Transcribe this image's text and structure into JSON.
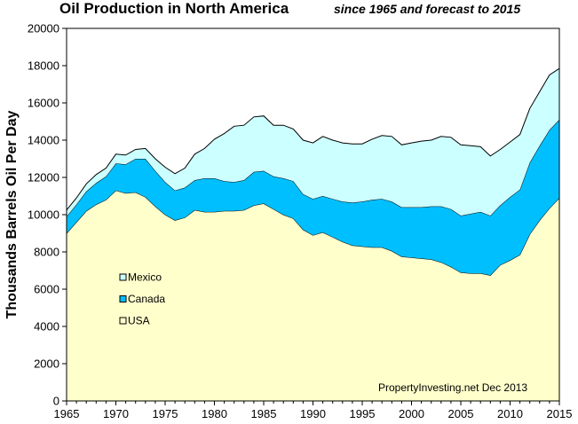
{
  "chart_data": {
    "type": "area",
    "stacked": true,
    "title": "Oil Production in North America",
    "subtitle": "since 1965 and forecast to 2015",
    "ylabel": "Thousands Barrels Oil Per Day",
    "xlabel": "",
    "xlim": [
      1965,
      2015
    ],
    "ylim": [
      0,
      20000
    ],
    "x_ticks": [
      "1965",
      "1970",
      "1975",
      "1980",
      "1985",
      "1990",
      "1995",
      "2000",
      "2005",
      "2010",
      "2015"
    ],
    "y_ticks": [
      "0",
      "2000",
      "4000",
      "6000",
      "8000",
      "10000",
      "12000",
      "14000",
      "16000",
      "18000",
      "20000"
    ],
    "grid": false,
    "legend_placement": "left-middle",
    "annotation": "PropertyInvesting.net  Dec 2013",
    "x": [
      1965,
      1966,
      1967,
      1968,
      1969,
      1970,
      1971,
      1972,
      1973,
      1974,
      1975,
      1976,
      1977,
      1978,
      1979,
      1980,
      1981,
      1982,
      1983,
      1984,
      1985,
      1986,
      1987,
      1988,
      1989,
      1990,
      1991,
      1992,
      1993,
      1994,
      1995,
      1996,
      1997,
      1998,
      1999,
      2000,
      2001,
      2002,
      2003,
      2004,
      2005,
      2006,
      2007,
      2008,
      2009,
      2010,
      2011,
      2012,
      2013,
      2014,
      2015
    ],
    "series": [
      {
        "name": "USA",
        "color": "#ffffcc",
        "values": [
          9000,
          9600,
          10200,
          10550,
          10800,
          11300,
          11150,
          11200,
          10950,
          10450,
          10000,
          9700,
          9850,
          10250,
          10150,
          10150,
          10200,
          10200,
          10250,
          10500,
          10600,
          10300,
          10000,
          9800,
          9200,
          8900,
          9050,
          8800,
          8550,
          8350,
          8300,
          8250,
          8250,
          8050,
          7750,
          7700,
          7650,
          7600,
          7450,
          7200,
          6900,
          6850,
          6850,
          6750,
          7300,
          7550,
          7850,
          8950,
          9700,
          10350,
          10900
        ]
      },
      {
        "name": "Canada",
        "color": "#00bfff",
        "values": [
          900,
          950,
          1050,
          1150,
          1250,
          1450,
          1550,
          1800,
          2050,
          1900,
          1750,
          1600,
          1600,
          1600,
          1800,
          1800,
          1600,
          1550,
          1600,
          1800,
          1750,
          1750,
          1950,
          2000,
          1900,
          1950,
          1950,
          2050,
          2150,
          2300,
          2400,
          2550,
          2600,
          2650,
          2650,
          2700,
          2750,
          2850,
          3000,
          3100,
          3050,
          3200,
          3300,
          3200,
          3200,
          3400,
          3500,
          3850,
          4000,
          4200,
          4200
        ]
      },
      {
        "name": "Mexico",
        "color": "#ccffff",
        "values": [
          350,
          350,
          400,
          450,
          450,
          500,
          500,
          500,
          550,
          650,
          800,
          900,
          1050,
          1400,
          1600,
          2100,
          2550,
          3000,
          2950,
          2950,
          2950,
          2750,
          2850,
          2800,
          2900,
          3000,
          3200,
          3150,
          3150,
          3150,
          3100,
          3250,
          3400,
          3500,
          3350,
          3450,
          3550,
          3550,
          3750,
          3850,
          3800,
          3650,
          3500,
          3200,
          3000,
          2950,
          2950,
          2900,
          2900,
          2950,
          2750
        ]
      }
    ]
  }
}
